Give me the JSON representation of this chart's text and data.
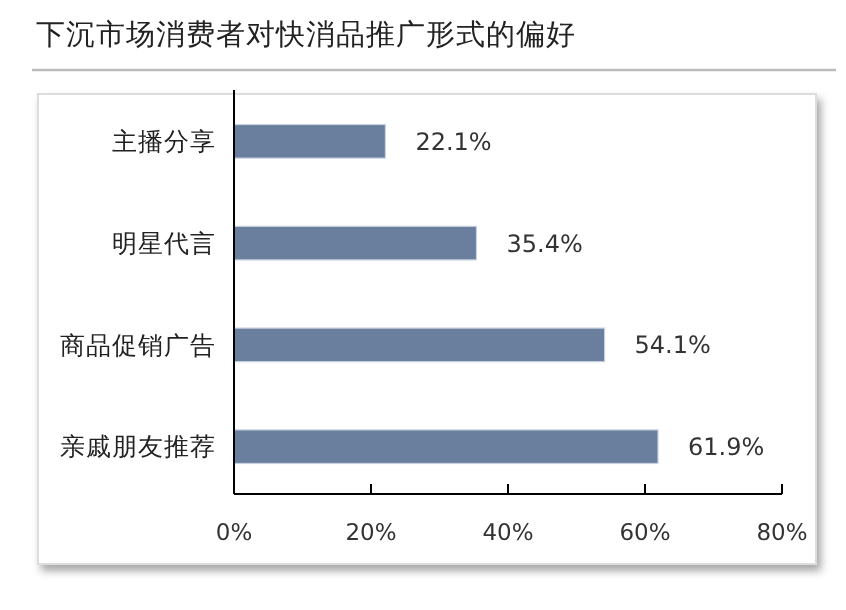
{
  "chart_data": {
    "type": "bar",
    "orientation": "horizontal",
    "title": "下沉市场消费者对快消品推广形式的偏好",
    "categories": [
      "主播分享",
      "明星代言",
      "商品促销广告",
      "亲戚朋友推荐"
    ],
    "values": [
      22.1,
      35.4,
      54.1,
      61.9
    ],
    "value_labels": [
      "22.1%",
      "35.4%",
      "54.1%",
      "61.9%"
    ],
    "color": "#6a7f9e",
    "xlim": [
      0,
      80
    ],
    "xticks": [
      {
        "value": 0,
        "label": "0%"
      },
      {
        "value": 20,
        "label": "20%"
      },
      {
        "value": 40,
        "label": "40%"
      },
      {
        "value": 60,
        "label": "60%"
      },
      {
        "value": 80,
        "label": "80%"
      }
    ],
    "grid": false
  }
}
